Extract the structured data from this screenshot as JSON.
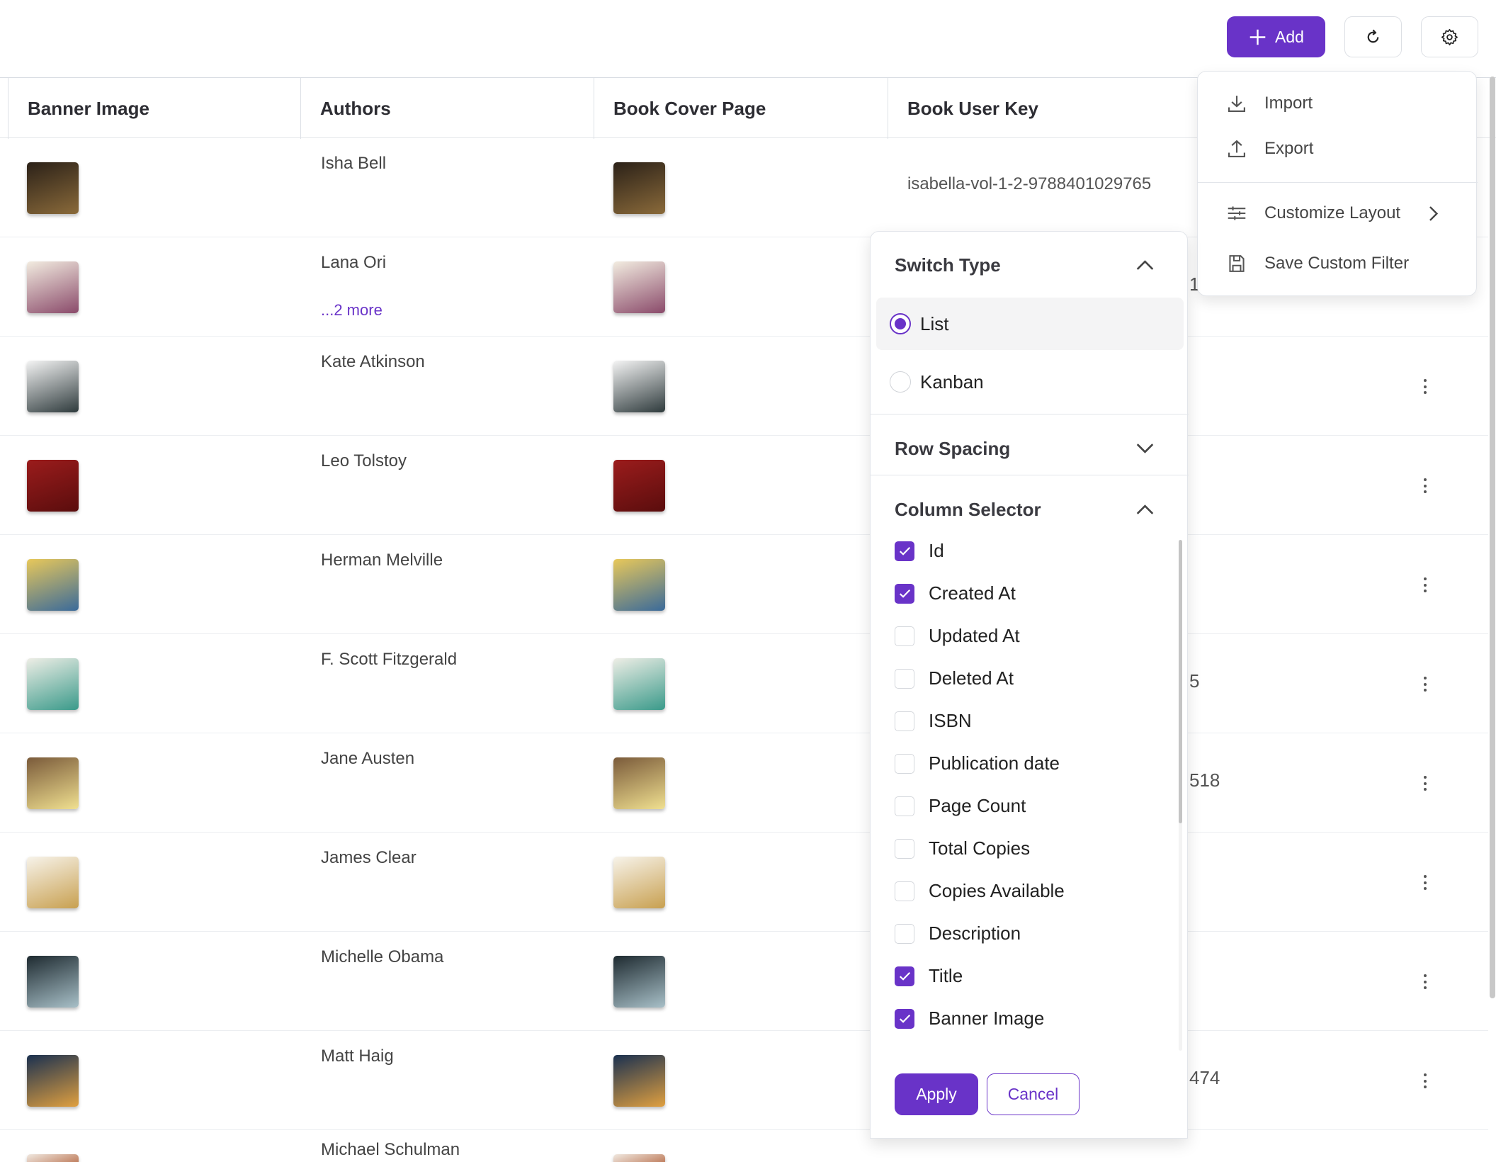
{
  "toolbar": {
    "add_label": "Add",
    "accent": "#6933c8"
  },
  "table": {
    "columns": [
      "Banner Image",
      "Authors",
      "Book Cover Page",
      "Book User Key"
    ],
    "rows": [
      {
        "author": "Isha Bell",
        "key": "isabella-vol-1-2-9788401029765",
        "cover": [
          "#2b2118",
          "#8a6a3a"
        ]
      },
      {
        "author": "Lana Ori",
        "more": "...2 more",
        "key_fragment": "1",
        "cover": [
          "#f2ece0",
          "#8a4a6a"
        ]
      },
      {
        "author": "Kate Atkinson",
        "cover": [
          "#f4f4f4",
          "#2e3a3c"
        ]
      },
      {
        "author": "Leo Tolstoy",
        "cover": [
          "#9b1c1c",
          "#5a0d0d"
        ]
      },
      {
        "author": "Herman Melville",
        "cover": [
          "#e8c85a",
          "#3a6a9a"
        ]
      },
      {
        "author": "F. Scott Fitzgerald",
        "key_fragment": "5",
        "cover": [
          "#eeeee6",
          "#3a9a8a"
        ]
      },
      {
        "author": "Jane Austen",
        "key_fragment": "518",
        "cover": [
          "#7a5a3a",
          "#f0e090"
        ]
      },
      {
        "author": "James Clear",
        "cover": [
          "#f7f3ea",
          "#c8a050"
        ]
      },
      {
        "author": "Michelle Obama",
        "cover": [
          "#1e2a30",
          "#a8c0c8"
        ]
      },
      {
        "author": "Matt Haig",
        "key_fragment": "474",
        "cover": [
          "#1a3050",
          "#e0a040"
        ]
      },
      {
        "author": "Michael Schulman",
        "cover": [
          "#f0e8e0",
          "#c08060"
        ]
      }
    ]
  },
  "menu": {
    "items": [
      "Import",
      "Export",
      "Customize Layout",
      "Save Custom Filter"
    ]
  },
  "panel": {
    "switch_type": "Switch Type",
    "options": [
      {
        "label": "List",
        "selected": true
      },
      {
        "label": "Kanban",
        "selected": false
      }
    ],
    "row_spacing": "Row Spacing",
    "column_selector": "Column Selector",
    "columns": [
      {
        "label": "Id",
        "checked": true
      },
      {
        "label": "Created At",
        "checked": true
      },
      {
        "label": "Updated At",
        "checked": false
      },
      {
        "label": "Deleted At",
        "checked": false
      },
      {
        "label": "ISBN",
        "checked": false
      },
      {
        "label": "Publication date",
        "checked": false
      },
      {
        "label": "Page Count",
        "checked": false
      },
      {
        "label": "Total Copies",
        "checked": false
      },
      {
        "label": "Copies Available",
        "checked": false
      },
      {
        "label": "Description",
        "checked": false
      },
      {
        "label": "Title",
        "checked": true
      },
      {
        "label": "Banner Image",
        "checked": true
      }
    ],
    "apply": "Apply",
    "cancel": "Cancel"
  }
}
